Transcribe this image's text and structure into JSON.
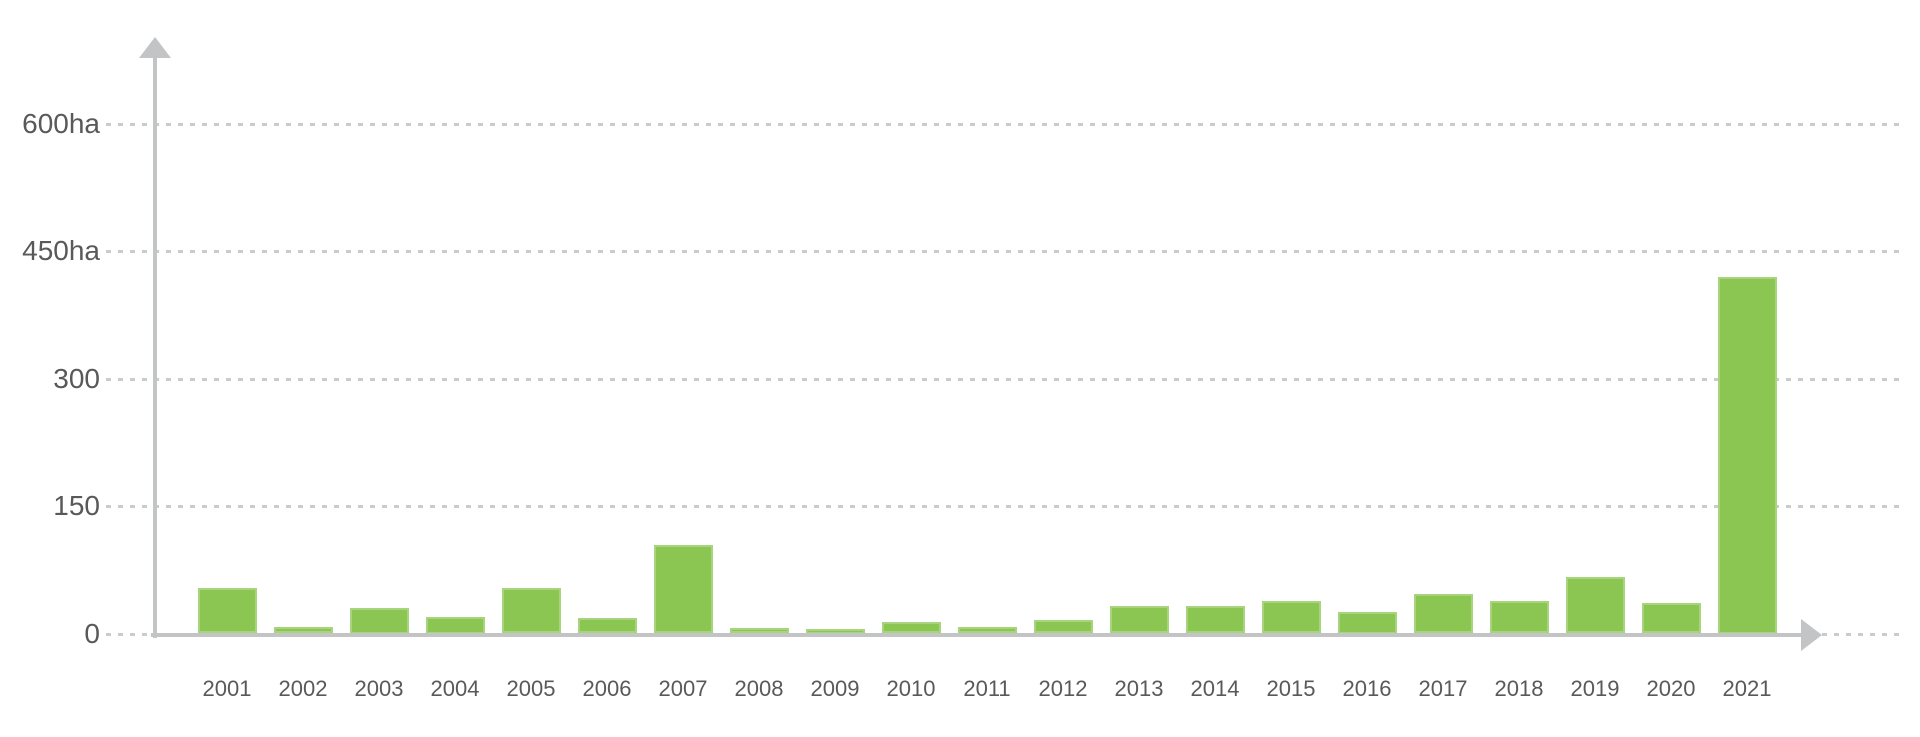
{
  "chart_data": {
    "type": "bar",
    "title": "",
    "xlabel": "",
    "ylabel": "",
    "unit": "ha",
    "categories": [
      "2001",
      "2002",
      "2003",
      "2004",
      "2005",
      "2006",
      "2007",
      "2008",
      "2009",
      "2010",
      "2011",
      "2012",
      "2013",
      "2014",
      "2015",
      "2016",
      "2017",
      "2018",
      "2019",
      "2020",
      "2021"
    ],
    "values": [
      53,
      8,
      30,
      20,
      53,
      18,
      104,
      6,
      5,
      14,
      8,
      16,
      32,
      32,
      38,
      25,
      47,
      38,
      67,
      36,
      420
    ],
    "ylim": [
      0,
      650
    ],
    "yticks": [
      {
        "value": 600,
        "label": "600ha"
      },
      {
        "value": 450,
        "label": "450ha"
      },
      {
        "value": 300,
        "label": "300"
      },
      {
        "value": 150,
        "label": "150"
      },
      {
        "value": 0,
        "label": "0"
      }
    ],
    "grid": "horizontal-dashed",
    "legend": "none",
    "colors": {
      "bar": "#8bc653",
      "axis": "#c3c4c6",
      "gridline": "#cbcbcb",
      "label": "#595959"
    }
  }
}
